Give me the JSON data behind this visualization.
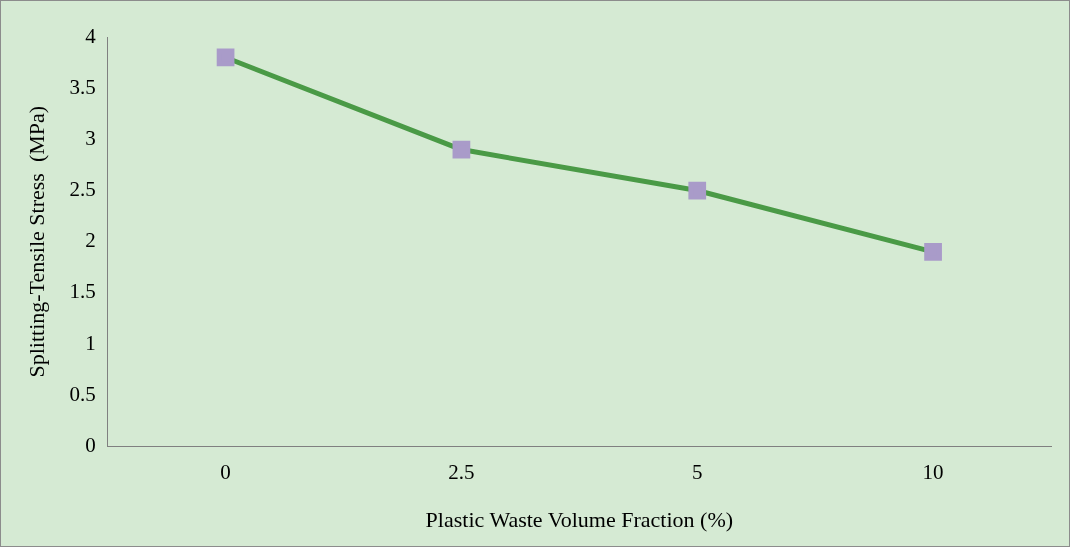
{
  "chart_data": {
    "type": "line",
    "xlabel": "Plastic Waste Volume Fraction (%)",
    "ylabel": "Splitting-Tensile Stress  (MPa)",
    "categories": [
      "0",
      "2.5",
      "5",
      "10"
    ],
    "series": [
      {
        "color": "#4a9a46",
        "colors": [
          "#a99bc9",
          "#a99bc9",
          "#a99bc9",
          "#a99bc9"
        ],
        "values": [
          3.8,
          2.9,
          2.5,
          1.9
        ]
      }
    ],
    "ylim": [
      0,
      4
    ],
    "yticks": [
      0,
      0.5,
      1,
      1.5,
      2,
      2.5,
      3,
      3.5,
      4
    ],
    "grid": false,
    "legend": false,
    "marker": "square",
    "line_style": "solid"
  }
}
